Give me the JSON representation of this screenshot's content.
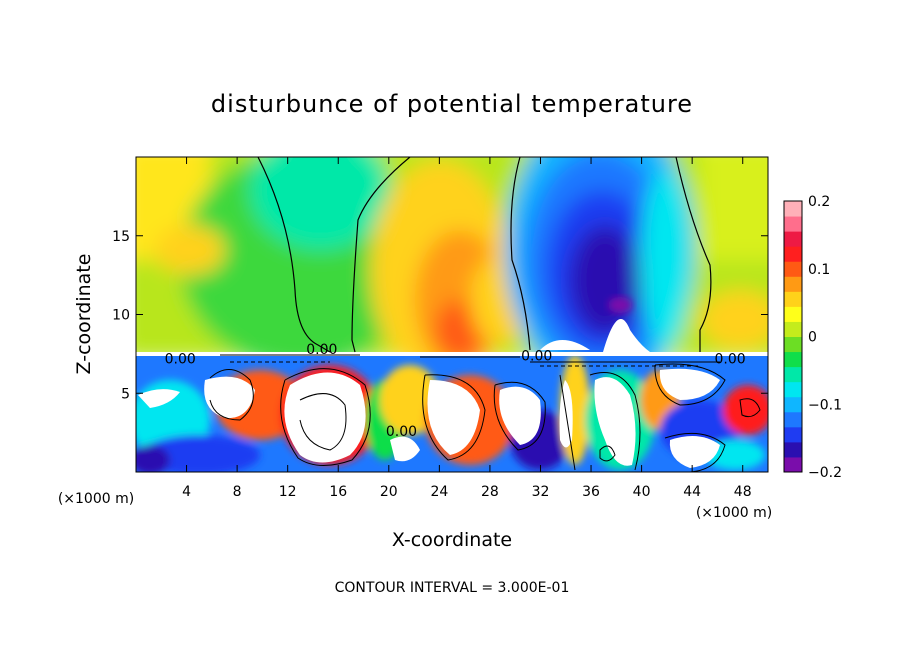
{
  "chart_data": {
    "type": "heatmap",
    "title": "disturbunce of potential temperature",
    "xlabel": "X-coordinate",
    "ylabel": "Z-coordinate",
    "x_unit_label": "(×1000 m)",
    "z_unit_label": "(×1000 m)",
    "xlim": [
      0,
      50
    ],
    "ylim": [
      0,
      20
    ],
    "x_ticks": [
      4,
      8,
      12,
      16,
      20,
      24,
      28,
      32,
      36,
      40,
      44,
      48
    ],
    "y_ticks": [
      5,
      10,
      15
    ],
    "colorbar": {
      "min": -0.2,
      "max": 0.2,
      "tick_values": [
        0.2,
        0.1,
        0,
        -0.1,
        -0.2
      ],
      "tick_labels": [
        "0.2",
        "0.1",
        "0",
        "−0.1",
        "−0.2"
      ],
      "colors": [
        "#7a0dab",
        "#2a0fb0",
        "#1f3cf2",
        "#1e78ff",
        "#0fb6ff",
        "#00e6f0",
        "#00e8a8",
        "#10de4a",
        "#6cde24",
        "#c4ec1c",
        "#ffff1a",
        "#ffd21a",
        "#ff9a14",
        "#ff5a14",
        "#ff1f1f",
        "#ee1a44",
        "#ff6e8c",
        "#ffb0b8"
      ]
    },
    "contour_labels": [
      {
        "text": "0.00",
        "x": 3.5,
        "z": 7.2
      },
      {
        "text": "0.00",
        "x": 14.7,
        "z": 7.8
      },
      {
        "text": "0.00",
        "x": 31.7,
        "z": 7.4
      },
      {
        "text": "0.00",
        "x": 47,
        "z": 7.2
      },
      {
        "text": "0.00",
        "x": 21,
        "z": 2.6
      }
    ],
    "footer": "CONTOUR INTERVAL = 3.000E-01"
  }
}
